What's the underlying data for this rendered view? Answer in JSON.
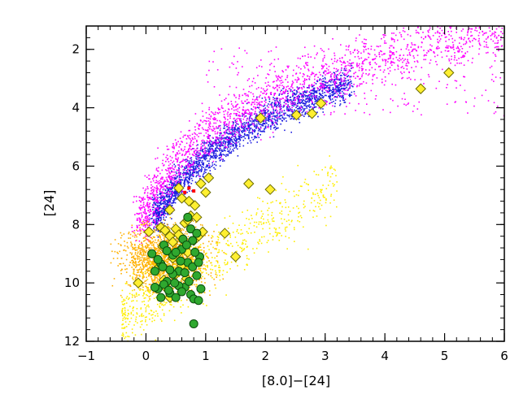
{
  "chart_data": {
    "type": "scatter",
    "title": "",
    "xlabel": "[8.0]−[24]",
    "ylabel": "[24]",
    "xlim": [
      -1,
      6
    ],
    "ylim": [
      12,
      1.2
    ],
    "y_inverted": true,
    "grid": false,
    "legend": "none",
    "x_ticks": [
      -1,
      0,
      1,
      2,
      3,
      4,
      5,
      6
    ],
    "x_tick_labels": [
      "−1",
      "0",
      "1",
      "2",
      "3",
      "4",
      "5",
      "6"
    ],
    "y_ticks": [
      2,
      4,
      6,
      8,
      10,
      12
    ],
    "y_tick_labels": [
      "2",
      "4",
      "6",
      "8",
      "10",
      "12"
    ],
    "colors": {
      "blue": "#1f1fe0",
      "magenta": "#ff00ff",
      "orange": "#ffb000",
      "yellow": "#ffee00",
      "diamond_fill": "#ffef30",
      "diamond_stroke": "#6b6b00",
      "green_fill": "#2fa82f",
      "green_stroke": "#0b4d0b",
      "red": "#ff0000"
    },
    "series": [
      {
        "marker": "diamond",
        "color": "#ffef30",
        "points": [
          [
            5.07,
            2.8
          ],
          [
            4.6,
            3.35
          ],
          [
            2.93,
            3.85
          ],
          [
            2.78,
            4.2
          ],
          [
            2.52,
            4.25
          ],
          [
            1.92,
            4.35
          ],
          [
            1.72,
            6.6
          ],
          [
            2.08,
            6.8
          ],
          [
            1.32,
            8.3
          ],
          [
            1.5,
            9.1
          ],
          [
            -0.13,
            10.0
          ],
          [
            0.05,
            8.25
          ],
          [
            0.25,
            8.1
          ],
          [
            0.32,
            8.2
          ],
          [
            0.4,
            8.4
          ],
          [
            0.45,
            8.6
          ],
          [
            0.5,
            8.15
          ],
          [
            0.55,
            8.35
          ],
          [
            0.6,
            8.8
          ],
          [
            0.65,
            7.95
          ],
          [
            0.7,
            7.85
          ],
          [
            0.75,
            7.7
          ],
          [
            0.82,
            7.35
          ],
          [
            0.88,
            8.4
          ],
          [
            0.95,
            8.25
          ],
          [
            1.0,
            6.9
          ],
          [
            0.92,
            6.6
          ],
          [
            0.55,
            6.75
          ],
          [
            0.6,
            7.1
          ],
          [
            0.72,
            7.2
          ],
          [
            0.2,
            9.5
          ],
          [
            0.3,
            9.9
          ],
          [
            0.35,
            10.2
          ],
          [
            0.5,
            9.7
          ],
          [
            0.6,
            9.4
          ],
          [
            0.7,
            8.95
          ],
          [
            0.8,
            8.55
          ],
          [
            0.45,
            9.15
          ],
          [
            0.4,
            10.5
          ],
          [
            0.28,
            8.75
          ],
          [
            1.05,
            6.4
          ],
          [
            0.55,
            8.95
          ],
          [
            0.68,
            9.85
          ],
          [
            0.85,
            7.75
          ],
          [
            0.4,
            7.5
          ]
        ]
      },
      {
        "marker": "circle",
        "color": "#2fa82f",
        "points": [
          [
            0.8,
            11.4
          ],
          [
            0.1,
            9.0
          ],
          [
            0.15,
            9.6
          ],
          [
            0.2,
            10.2
          ],
          [
            0.25,
            9.35
          ],
          [
            0.3,
            8.7
          ],
          [
            0.35,
            9.95
          ],
          [
            0.4,
            10.35
          ],
          [
            0.45,
            9.05
          ],
          [
            0.5,
            10.5
          ],
          [
            0.55,
            9.6
          ],
          [
            0.6,
            8.85
          ],
          [
            0.65,
            10.15
          ],
          [
            0.7,
            9.3
          ],
          [
            0.75,
            10.4
          ],
          [
            0.78,
            8.55
          ],
          [
            0.8,
            10.55
          ],
          [
            0.85,
            9.75
          ],
          [
            0.88,
            10.6
          ],
          [
            0.9,
            9.1
          ],
          [
            0.25,
            10.5
          ],
          [
            0.35,
            8.9
          ],
          [
            0.45,
            9.7
          ],
          [
            0.55,
            10.1
          ],
          [
            0.62,
            8.5
          ],
          [
            0.7,
            7.75
          ],
          [
            0.75,
            8.15
          ],
          [
            0.82,
            8.95
          ],
          [
            0.72,
            9.95
          ],
          [
            0.58,
            9.25
          ],
          [
            0.4,
            9.55
          ],
          [
            0.3,
            10.05
          ],
          [
            0.2,
            9.2
          ],
          [
            0.5,
            8.95
          ],
          [
            0.65,
            9.65
          ],
          [
            0.85,
            8.3
          ],
          [
            0.92,
            10.2
          ],
          [
            0.15,
            10.15
          ],
          [
            0.38,
            10.25
          ],
          [
            0.68,
            8.7
          ],
          [
            0.78,
            9.45
          ],
          [
            0.48,
            10.0
          ],
          [
            0.28,
            9.45
          ],
          [
            0.6,
            10.3
          ],
          [
            0.88,
            9.3
          ]
        ]
      },
      {
        "marker": "point",
        "color": "#ff0000",
        "points": [
          [
            0.72,
            6.75
          ],
          [
            0.8,
            6.85
          ],
          [
            0.65,
            6.9
          ]
        ]
      }
    ],
    "density_clouds": [
      {
        "color": "#ff00ff",
        "description_from_plot": "dense upper-left branch",
        "region_points": [
          [
            0.1,
            7.0
          ],
          [
            0.6,
            5.2
          ],
          [
            1.5,
            3.8
          ],
          [
            2.5,
            3.2
          ],
          [
            3.5,
            2.8
          ],
          [
            4.5,
            2.3
          ],
          [
            5.3,
            2.0
          ],
          [
            6.0,
            1.5
          ]
        ]
      },
      {
        "color": "#1f1fe0",
        "region_points": [
          [
            0.8,
            7.5
          ],
          [
            1.0,
            5.5
          ],
          [
            1.5,
            4.2
          ],
          [
            2.2,
            3.4
          ],
          [
            3.0,
            2.8
          ],
          [
            3.3,
            2.4
          ]
        ]
      },
      {
        "color": "#ffb000",
        "region_points": [
          [
            -0.2,
            9.5
          ],
          [
            0.2,
            9.0
          ],
          [
            0.5,
            8.7
          ],
          [
            0.8,
            9.5
          ],
          [
            1.0,
            8.7
          ]
        ]
      },
      {
        "color": "#ffee00",
        "region_points": [
          [
            -0.3,
            10.3
          ],
          [
            0.3,
            10.8
          ],
          [
            1.2,
            8.7
          ],
          [
            2.0,
            8.4
          ],
          [
            3.0,
            6.3
          ]
        ]
      }
    ]
  }
}
